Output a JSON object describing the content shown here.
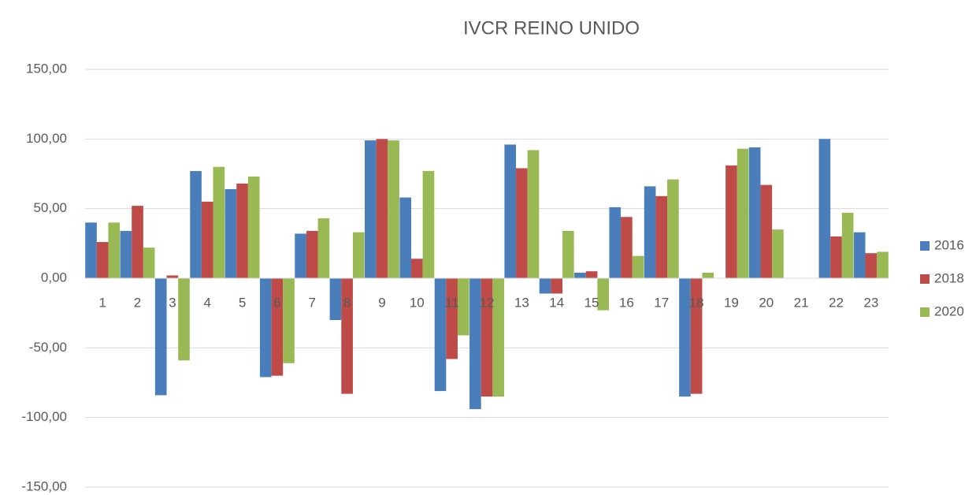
{
  "chart_data": {
    "type": "bar",
    "title": "IVCR REINO UNIDO",
    "categories": [
      "1",
      "2",
      "3",
      "4",
      "5",
      "6",
      "7",
      "8",
      "9",
      "10",
      "11",
      "12",
      "13",
      "14",
      "15",
      "16",
      "17",
      "18",
      "19",
      "20",
      "21",
      "22",
      "23"
    ],
    "series": [
      {
        "name": "2016",
        "color": "#4a7ebb",
        "values": [
          40,
          34,
          -84,
          77,
          64,
          -71,
          32,
          -30,
          99,
          58,
          -81,
          -94,
          96,
          -11,
          4,
          51,
          66,
          -85,
          0,
          94,
          0,
          100,
          33
        ]
      },
      {
        "name": "2018",
        "color": "#be4b48",
        "values": [
          26,
          52,
          2,
          55,
          68,
          -70,
          34,
          -83,
          100,
          14,
          -58,
          -85,
          79,
          -11,
          5,
          44,
          59,
          -83,
          81,
          67,
          0,
          30,
          18
        ]
      },
      {
        "name": "2020",
        "color": "#98b954",
        "values": [
          40,
          22,
          -59,
          80,
          73,
          -61,
          43,
          33,
          99,
          77,
          -41,
          -85,
          92,
          34,
          -23,
          16,
          71,
          4,
          93,
          35,
          0,
          47,
          19
        ]
      }
    ],
    "ylim": [
      -150,
      150
    ],
    "yticks": [
      {
        "value": -150,
        "label": "-150,00"
      },
      {
        "value": -100,
        "label": "-100,00"
      },
      {
        "value": -50,
        "label": "-50,00"
      },
      {
        "value": 0,
        "label": "0,00"
      },
      {
        "value": 50,
        "label": "50,00"
      },
      {
        "value": 100,
        "label": "100,00"
      },
      {
        "value": 150,
        "label": "150,00"
      }
    ],
    "grid": true,
    "legend": "right"
  }
}
